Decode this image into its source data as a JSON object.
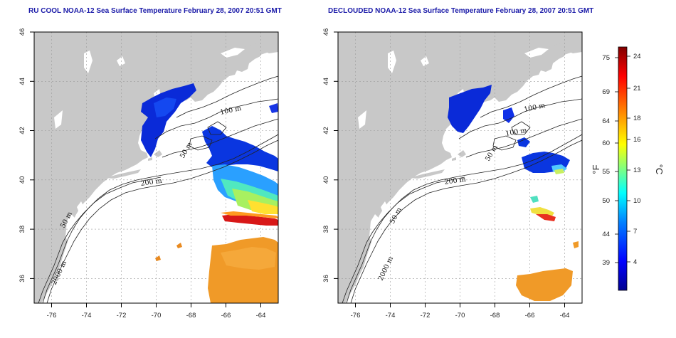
{
  "panels": [
    {
      "id": "left",
      "title": "RU COOL NOAA-12 Sea Surface Temperature February 28, 2007 20:51 GMT",
      "contour_labels": [
        "100 m",
        "50 m",
        "200 m",
        "50 m",
        "2000 m"
      ]
    },
    {
      "id": "right",
      "title": "DECLOUDED NOAA-12 Sea Surface Temperature February 28, 2007 20:51 GMT",
      "contour_labels": [
        "100 m",
        "100 m",
        "50 m",
        "200 m",
        "50 m",
        "2000 m"
      ]
    }
  ],
  "axes": {
    "longitude_ticks": [
      "-76",
      "-74",
      "-72",
      "-70",
      "-68",
      "-66",
      "-64"
    ],
    "latitude_ticks": [
      "46",
      "44",
      "42",
      "40",
      "38",
      "36"
    ],
    "lon_range": [
      -77,
      -63
    ],
    "lat_range": [
      35,
      46
    ]
  },
  "colorbar": {
    "fahrenheit_ticks": [
      "75",
      "69",
      "64",
      "60",
      "55",
      "50",
      "44",
      "39"
    ],
    "celsius_ticks": [
      "24",
      "21",
      "18",
      "16",
      "13",
      "10",
      "7",
      "4"
    ],
    "fahrenheit_unit": "°F",
    "celsius_unit": "°C",
    "colors": [
      "#00008f",
      "#0000ff",
      "#0080ff",
      "#00ffff",
      "#80ff80",
      "#ffff00",
      "#ff8000",
      "#ff0000",
      "#800000"
    ]
  },
  "colors": {
    "land": "#c8c8c8",
    "ocean": "#ffffff",
    "title": "#1a1aa8"
  }
}
